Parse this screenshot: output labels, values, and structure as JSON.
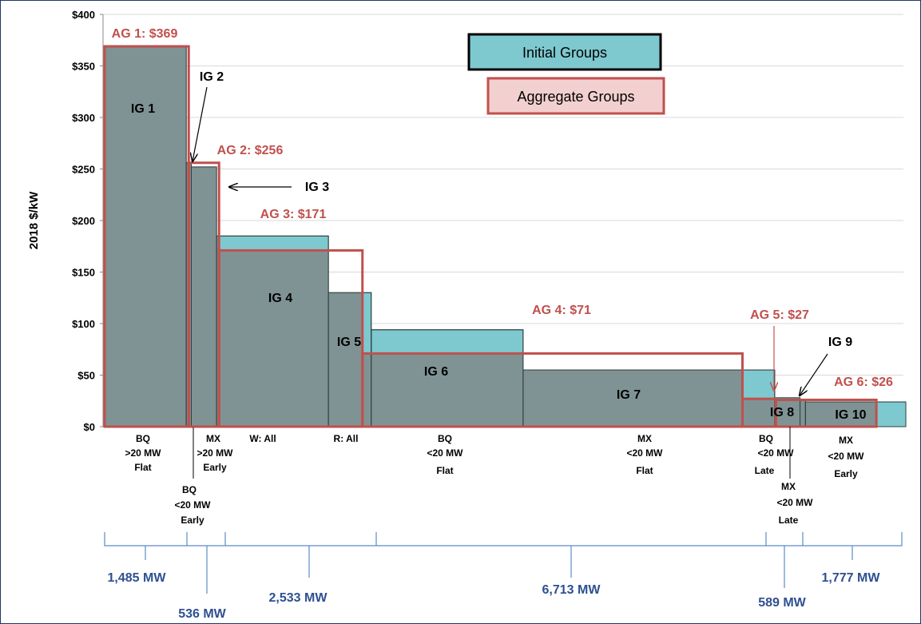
{
  "chart_data": {
    "type": "bar",
    "ylabel": "2018 $/kW",
    "ylim": [
      0,
      400
    ],
    "y_ticks": [
      "$0",
      "$50",
      "$100",
      "$150",
      "$200",
      "$250",
      "$300",
      "$350",
      "$400"
    ],
    "grid": true,
    "legend": {
      "placement": "top-right",
      "entries": [
        {
          "name": "Initial Groups",
          "color": "#7ec8cf"
        },
        {
          "name": "Aggregate Groups",
          "color": "#f2d0cf",
          "border": "#c0504d"
        }
      ]
    },
    "initial_groups": [
      {
        "label": "IG 1",
        "x_start": 0,
        "width": 1441,
        "value": 369
      },
      {
        "label": "IG 2",
        "x_start": 1441,
        "width": 90,
        "value": 256
      },
      {
        "label": "IG 3",
        "x_start": 1531,
        "width": 446,
        "value": 252
      },
      {
        "label": "IG 4",
        "x_start": 1977,
        "width": 1976,
        "value": 185
      },
      {
        "label": "IG 5",
        "x_start": 3953,
        "width": 756,
        "value": 130
      },
      {
        "label": "IG 6",
        "x_start": 4709,
        "width": 2683,
        "value": 94
      },
      {
        "label": "IG 7",
        "x_start": 7392,
        "width": 4445,
        "value": 55
      },
      {
        "label": "IG 8",
        "x_start": 11837,
        "width": 447,
        "value": 28
      },
      {
        "label": "IG 9",
        "x_start": 12284,
        "width": 96,
        "value": 26
      },
      {
        "label": "IG 10",
        "x_start": 12380,
        "width": 1773,
        "value": 24
      }
    ],
    "aggregate_groups": [
      {
        "label": "AG 1: $369",
        "x_start": 0,
        "width": 1485,
        "value": 369
      },
      {
        "label": "AG 2: $256",
        "x_start": 1485,
        "width": 536,
        "value": 256
      },
      {
        "label": "AG 3: $171",
        "x_start": 2021,
        "width": 2533,
        "value": 171
      },
      {
        "label": "AG 4: $71",
        "x_start": 4554,
        "width": 6713,
        "value": 71
      },
      {
        "label": "AG 5: $27",
        "x_start": 11267,
        "width": 589,
        "value": 27
      },
      {
        "label": "AG 6: $26",
        "x_start": 11856,
        "width": 1777,
        "value": 26
      }
    ],
    "categories": [
      {
        "lines": [
          "BQ",
          ">20 MW",
          "Flat"
        ]
      },
      {
        "lines": [
          "BQ",
          "<20 MW",
          "Early"
        ]
      },
      {
        "lines": [
          "MX",
          ">20 MW",
          "Early"
        ]
      },
      {
        "lines": [
          "W: All"
        ]
      },
      {
        "lines": [
          "R: All"
        ]
      },
      {
        "lines": [
          "BQ",
          "<20 MW",
          "Flat"
        ]
      },
      {
        "lines": [
          "MX",
          "<20 MW",
          "Flat"
        ]
      },
      {
        "lines": [
          "BQ",
          "<20 MW",
          "Late"
        ]
      },
      {
        "lines": [
          "MX",
          "<20 MW",
          "Late"
        ]
      },
      {
        "lines": [
          "MX",
          "<20 MW",
          "Early"
        ]
      }
    ],
    "capacity_brackets": [
      "1,485 MW",
      "536 MW",
      "2,533 MW",
      "6,713 MW",
      "589 MW",
      "1,777 MW"
    ]
  }
}
